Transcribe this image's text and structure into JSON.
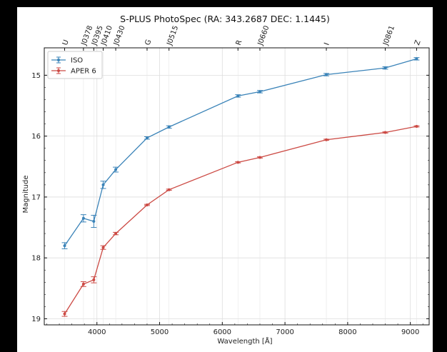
{
  "chart_data": {
    "type": "line",
    "title": "S-PLUS PhotoSpec (RA: 343.2687 DEC: 1.1445)",
    "xlabel": "Wavelength [Å]",
    "ylabel": "Magnitude",
    "xlim": [
      3160,
      9300
    ],
    "ylim": [
      19.1,
      14.55
    ],
    "y_inverted": true,
    "grid": true,
    "legend_position": "top-left",
    "x_ticks": [
      4000,
      5000,
      6000,
      7000,
      8000,
      9000
    ],
    "y_ticks": [
      15,
      16,
      17,
      18,
      19
    ],
    "filters": [
      {
        "name": "U",
        "wavelength": 3485
      },
      {
        "name": "J0378",
        "wavelength": 3785
      },
      {
        "name": "J0395",
        "wavelength": 3950
      },
      {
        "name": "J0410",
        "wavelength": 4100
      },
      {
        "name": "J0430",
        "wavelength": 4300
      },
      {
        "name": "G",
        "wavelength": 4800
      },
      {
        "name": "J0515",
        "wavelength": 5150
      },
      {
        "name": "R",
        "wavelength": 6250
      },
      {
        "name": "J0660",
        "wavelength": 6600
      },
      {
        "name": "I",
        "wavelength": 7660
      },
      {
        "name": "J0861",
        "wavelength": 8600
      },
      {
        "name": "Z",
        "wavelength": 9100
      }
    ],
    "x": [
      3485,
      3785,
      3950,
      4100,
      4300,
      4800,
      5150,
      6250,
      6600,
      7660,
      8600,
      9100
    ],
    "series": [
      {
        "name": "ISO",
        "color": "#3a83b8",
        "values": [
          17.8,
          17.35,
          17.4,
          16.8,
          16.55,
          16.03,
          15.85,
          15.34,
          15.27,
          14.99,
          14.88,
          14.73
        ],
        "errors": [
          0.05,
          0.06,
          0.1,
          0.06,
          0.04,
          0.02,
          0.02,
          0.02,
          0.02,
          0.02,
          0.02,
          0.02
        ]
      },
      {
        "name": "APER 6",
        "color": "#cc4a44",
        "values": [
          18.92,
          18.43,
          18.36,
          17.83,
          17.6,
          17.13,
          16.88,
          16.43,
          16.35,
          16.06,
          15.94,
          15.84
        ],
        "errors": [
          0.04,
          0.04,
          0.05,
          0.03,
          0.02,
          0.01,
          0.01,
          0.01,
          0.01,
          0.01,
          0.01,
          0.01
        ]
      }
    ]
  }
}
